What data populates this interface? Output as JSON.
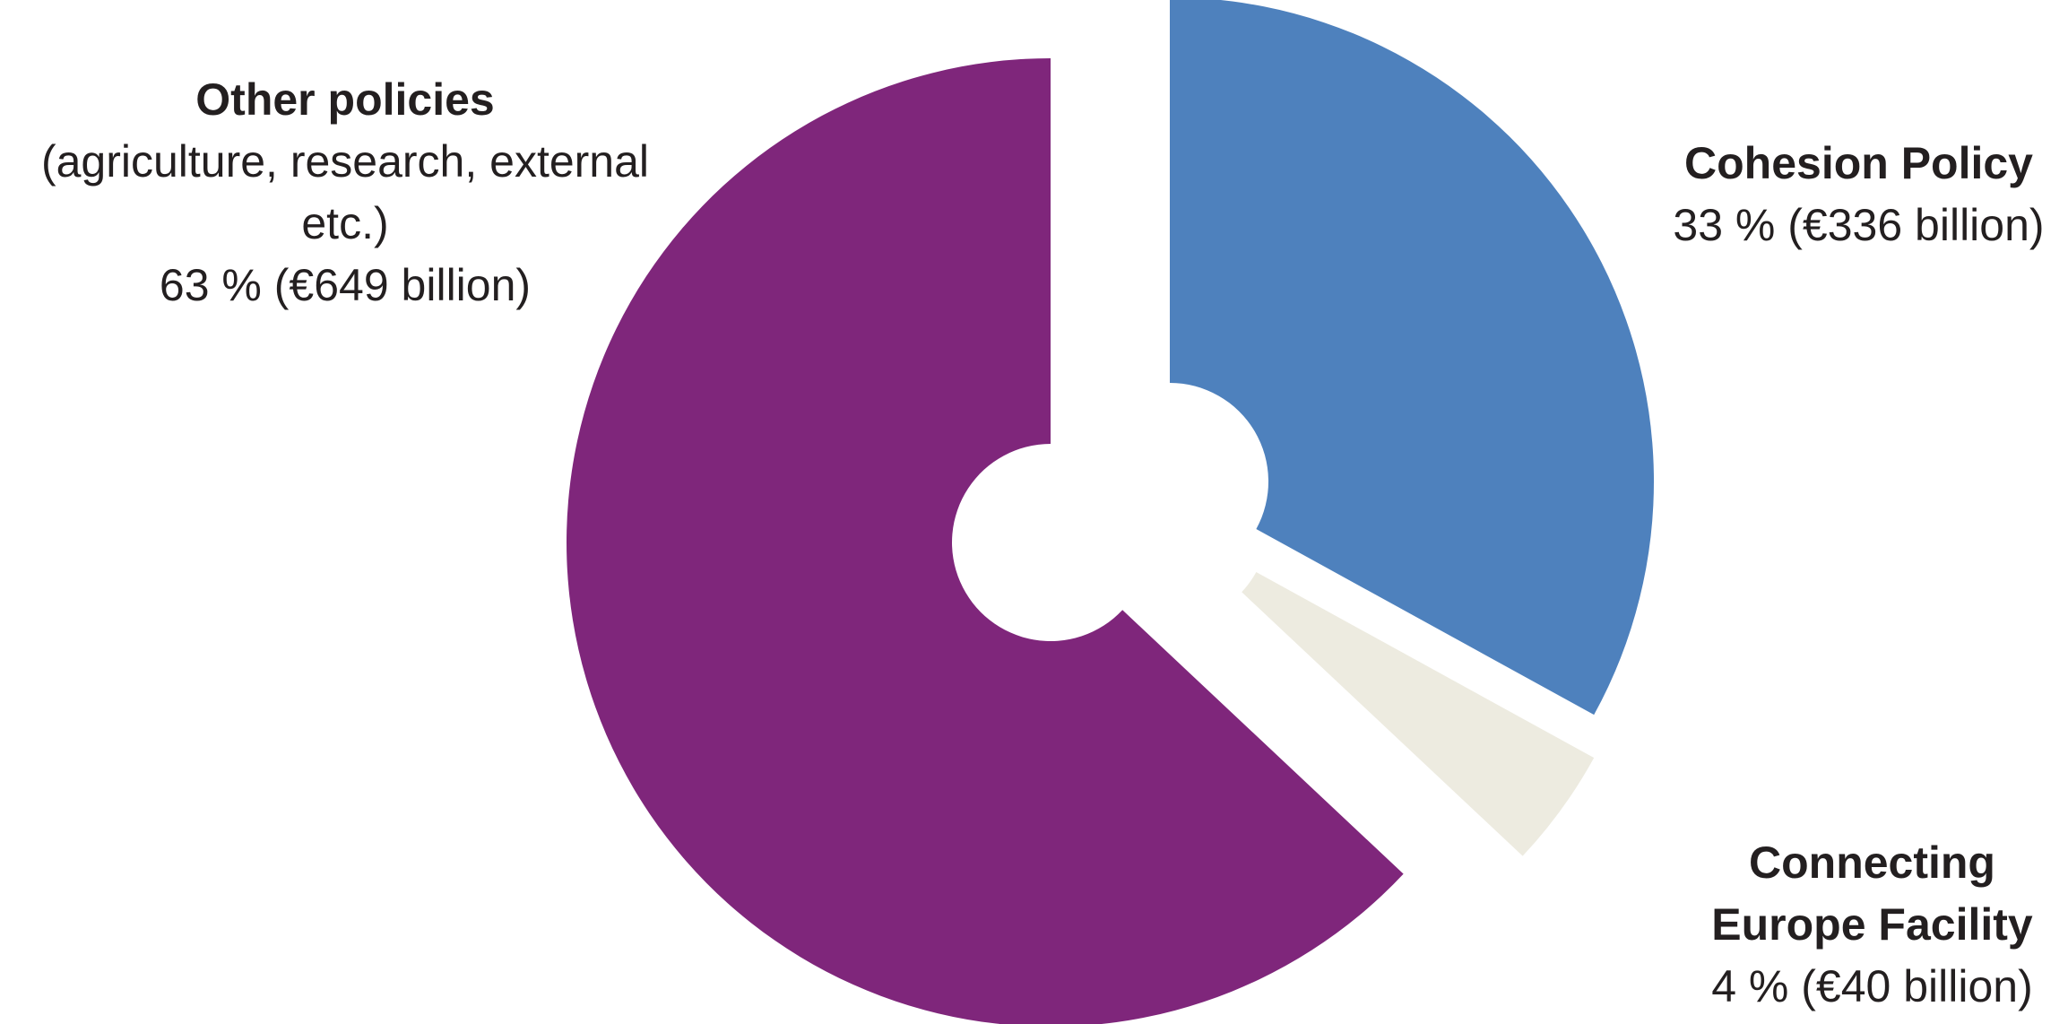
{
  "chart_data": {
    "type": "pie",
    "style": "exploded donut",
    "slices": [
      {
        "name": "Cohesion Policy",
        "description": "",
        "percent": 33,
        "value_label": "33 % (€336 billion)",
        "value": 336,
        "color": "#4e81bd"
      },
      {
        "name": "Connecting Europe Facility",
        "description": "",
        "percent": 4,
        "value_label": "4 % (€40 billion)",
        "value": 40,
        "color": "#edebe0"
      },
      {
        "name": "Other policies",
        "description": "(agriculture, research, external etc.)",
        "percent": 63,
        "value_label": "63 % (€649 billion)",
        "value": 649,
        "color": "#7f267b"
      }
    ],
    "unit": "€ billion",
    "start_angle": "12 o'clock",
    "direction": "clockwise"
  }
}
